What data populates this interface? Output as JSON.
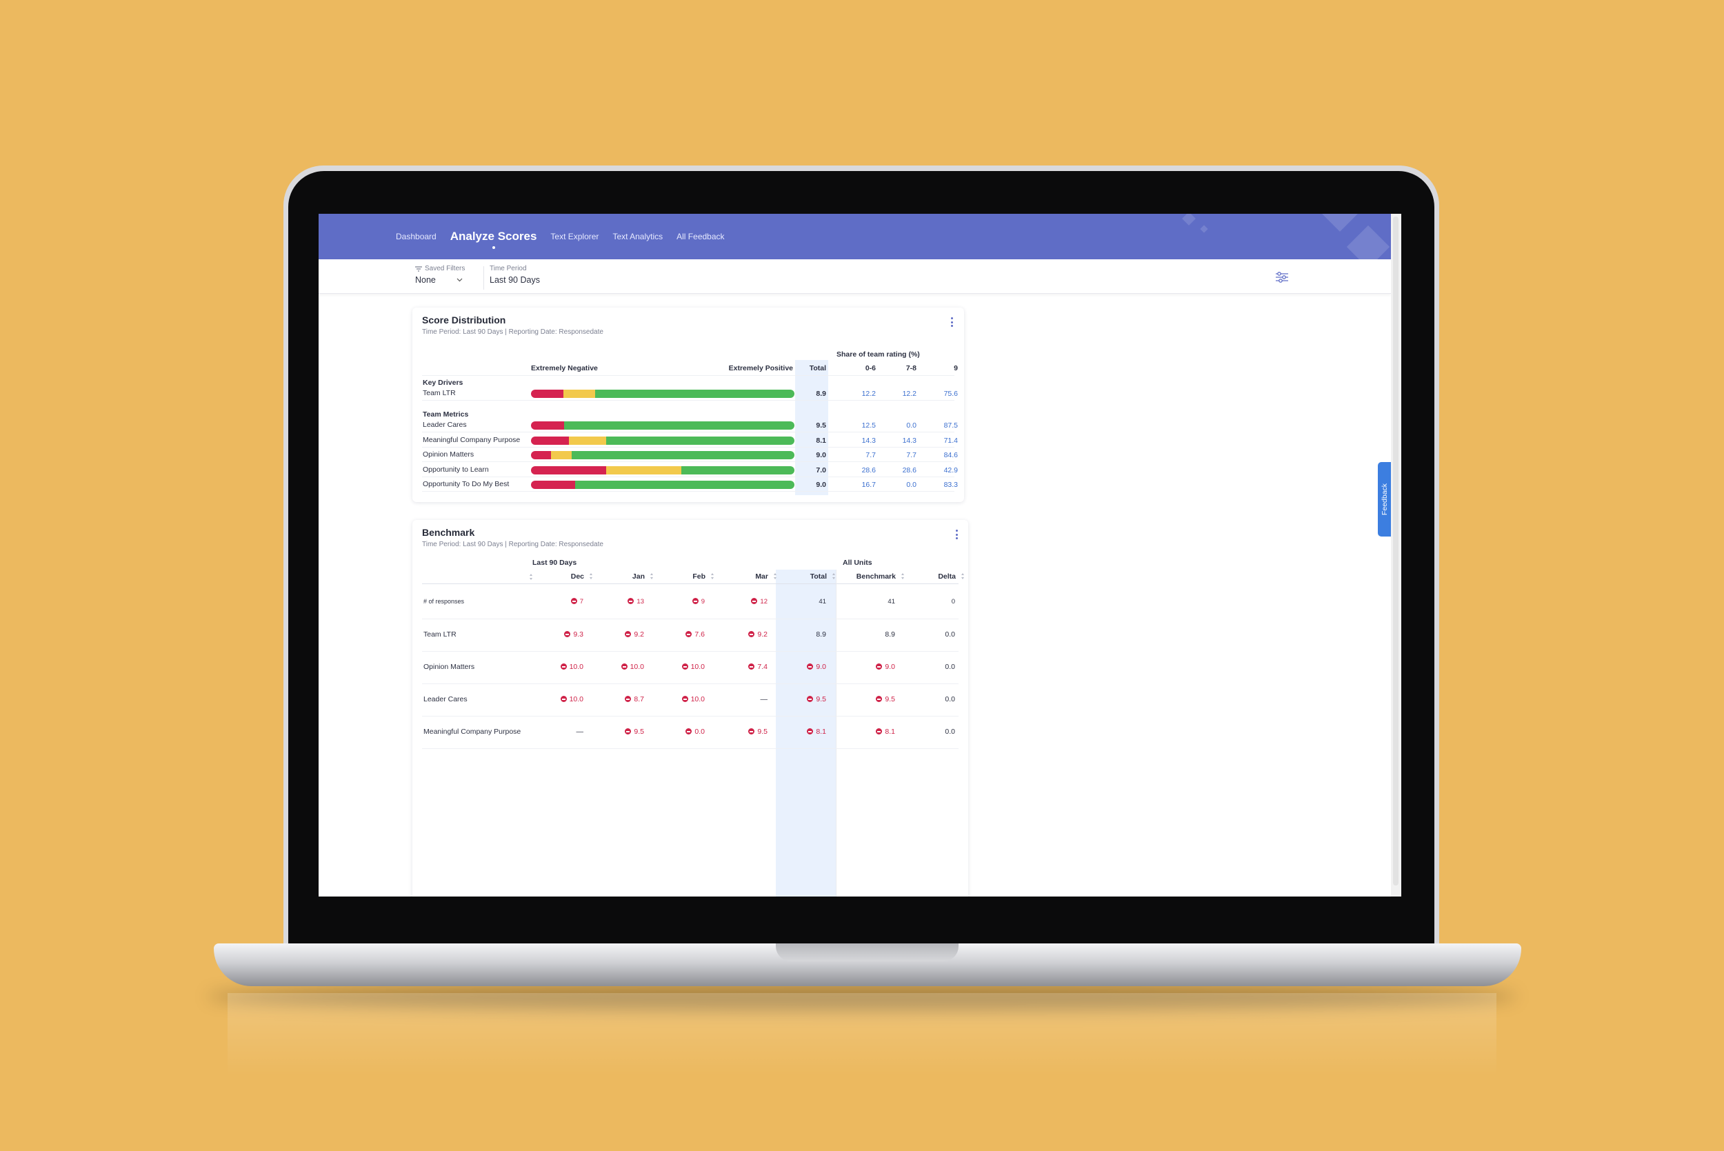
{
  "nav": {
    "items": [
      {
        "label": "Dashboard",
        "active": false
      },
      {
        "label": "Analyze Scores",
        "active": true
      },
      {
        "label": "Text Explorer",
        "active": false
      },
      {
        "label": "Text Analytics",
        "active": false
      },
      {
        "label": "All Feedback",
        "active": false
      }
    ]
  },
  "filters": {
    "saved_filters": {
      "label": "Saved Filters",
      "value": "None"
    },
    "time_period": {
      "label": "Time Period",
      "value": "Last 90 Days"
    }
  },
  "feedback_tab": "Feedback",
  "score_distribution": {
    "title": "Score Distribution",
    "subtitle": "Time Period: Last 90 Days | Reporting Date: Responsedate",
    "share_header": "Share of team rating (%)",
    "left_label": "Extremely Negative",
    "right_label": "Extremely Positive",
    "columns": {
      "total": "Total",
      "c06": "0-6",
      "c78": "7-8",
      "c9": "9"
    },
    "groups": {
      "key_drivers": "Key Drivers",
      "team_metrics": "Team Metrics"
    },
    "rows": [
      {
        "name": "Team LTR",
        "total": "8.9",
        "c06": "12.2",
        "c78": "12.2",
        "c9": "75.6",
        "neg": 12.2,
        "mid": 12.2,
        "pos": 75.6
      },
      {
        "name": "Leader Cares",
        "total": "9.5",
        "c06": "12.5",
        "c78": "0.0",
        "c9": "87.5",
        "neg": 12.5,
        "mid": 0.0,
        "pos": 87.5
      },
      {
        "name": "Meaningful Company Purpose",
        "total": "8.1",
        "c06": "14.3",
        "c78": "14.3",
        "c9": "71.4",
        "neg": 14.3,
        "mid": 14.3,
        "pos": 71.4
      },
      {
        "name": "Opinion Matters",
        "total": "9.0",
        "c06": "7.7",
        "c78": "7.7",
        "c9": "84.6",
        "neg": 7.7,
        "mid": 7.7,
        "pos": 84.6
      },
      {
        "name": "Opportunity to Learn",
        "total": "7.0",
        "c06": "28.6",
        "c78": "28.6",
        "c9": "42.9",
        "neg": 28.6,
        "mid": 28.6,
        "pos": 42.9
      },
      {
        "name": "Opportunity To Do My Best",
        "total": "9.0",
        "c06": "16.7",
        "c78": "0.0",
        "c9": "83.3",
        "neg": 16.7,
        "mid": 0.0,
        "pos": 83.3
      }
    ]
  },
  "benchmark": {
    "title": "Benchmark",
    "subtitle": "Time Period: Last 90 Days | Reporting Date: Responsedate",
    "group_left": "Last 90 Days",
    "group_right": "All Units",
    "columns": {
      "dec": "Dec",
      "jan": "Jan",
      "feb": "Feb",
      "mar": "Mar",
      "total": "Total",
      "benchmark": "Benchmark",
      "delta": "Delta"
    },
    "rows": [
      {
        "name": "# of responses",
        "dec": "7",
        "jan": "13",
        "feb": "9",
        "mar": "12",
        "total": "41",
        "benchmark": "41",
        "delta": "0",
        "flags": {
          "dec": true,
          "jan": true,
          "feb": true,
          "mar": true,
          "total": false,
          "benchmark": false
        }
      },
      {
        "name": "Team LTR",
        "dec": "9.3",
        "jan": "9.2",
        "feb": "7.6",
        "mar": "9.2",
        "total": "8.9",
        "benchmark": "8.9",
        "delta": "0.0",
        "flags": {
          "dec": true,
          "jan": true,
          "feb": true,
          "mar": true,
          "total": false,
          "benchmark": false
        }
      },
      {
        "name": "Opinion Matters",
        "dec": "10.0",
        "jan": "10.0",
        "feb": "10.0",
        "mar": "7.4",
        "total": "9.0",
        "benchmark": "9.0",
        "delta": "0.0",
        "flags": {
          "dec": true,
          "jan": true,
          "feb": true,
          "mar": true,
          "total": true,
          "benchmark": true
        }
      },
      {
        "name": "Leader Cares",
        "dec": "10.0",
        "jan": "8.7",
        "feb": "10.0",
        "mar": "—",
        "total": "9.5",
        "benchmark": "9.5",
        "delta": "0.0",
        "flags": {
          "dec": true,
          "jan": true,
          "feb": true,
          "mar": false,
          "total": true,
          "benchmark": true
        }
      },
      {
        "name": "Meaningful Company Purpose",
        "dec": "—",
        "jan": "9.5",
        "feb": "0.0",
        "mar": "9.5",
        "total": "8.1",
        "benchmark": "8.1",
        "delta": "0.0",
        "flags": {
          "dec": false,
          "jan": true,
          "feb": true,
          "mar": true,
          "total": true,
          "benchmark": true
        }
      }
    ]
  },
  "colors": {
    "header": "#5f6dc6",
    "negative": "#d52350",
    "neutral": "#f2c94c",
    "positive": "#4cba58",
    "link": "#3b6fcf",
    "alert": "#cf2248"
  }
}
